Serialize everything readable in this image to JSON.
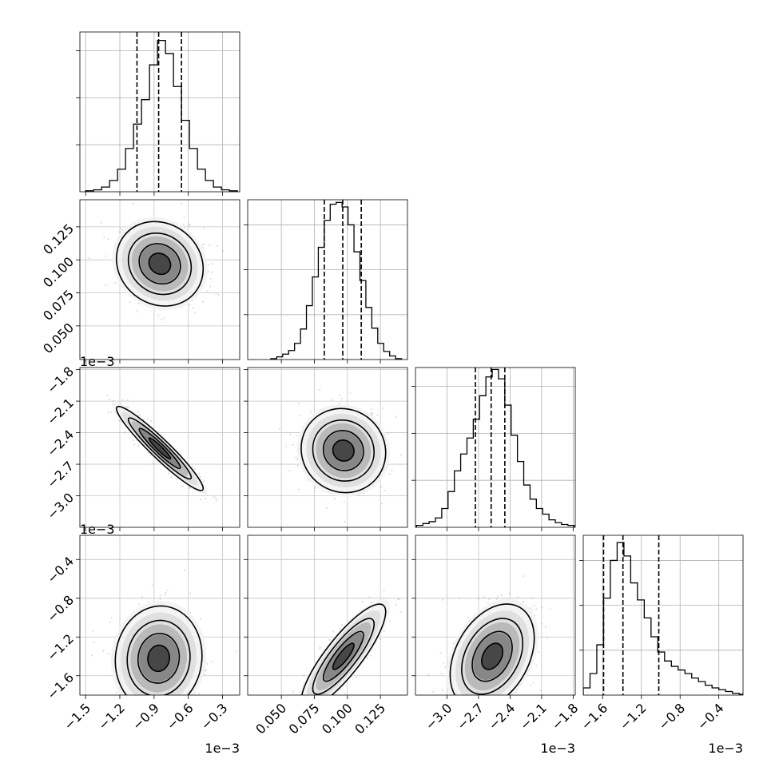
{
  "chart_data": {
    "type": "corner",
    "variables": 4,
    "grid": true,
    "sample_points": "grey scatter with shaded 2D density, black contours",
    "histograms": [
      {
        "variable": 0,
        "xlim": [
          -1.55,
          -0.15
        ],
        "quantiles": [
          -1.05,
          -0.86,
          -0.66
        ],
        "bins": [
          -1.5,
          -1.43,
          -1.36,
          -1.29,
          -1.22,
          -1.15,
          -1.08,
          -1.01,
          -0.94,
          -0.87,
          -0.8,
          -0.73,
          -0.66,
          -0.59,
          -0.52,
          -0.45,
          -0.38,
          -0.31,
          -0.24
        ],
        "counts": [
          1,
          2,
          5,
          12,
          24,
          46,
          72,
          98,
          135,
          161,
          147,
          112,
          76,
          46,
          24,
          12,
          5,
          2,
          1
        ],
        "yticks": [
          50,
          100,
          150
        ],
        "ymax": 170
      },
      {
        "variable": 1,
        "xlim": [
          0.0245,
          0.1455
        ],
        "quantiles": [
          0.0825,
          0.0965,
          0.1105
        ],
        "bins": [
          0.042,
          0.0465,
          0.051,
          0.0555,
          0.06,
          0.0645,
          0.069,
          0.0735,
          0.078,
          0.0825,
          0.087,
          0.0915,
          0.096,
          0.1005,
          0.105,
          0.1095,
          0.114,
          0.1185,
          0.123,
          0.1275,
          0.132,
          0.1365
        ],
        "counts": [
          1,
          3,
          6,
          10,
          18,
          34,
          60,
          92,
          125,
          155,
          173,
          175,
          170,
          150,
          120,
          88,
          58,
          35,
          18,
          9,
          4,
          1
        ],
        "yticks": [
          50,
          100,
          150
        ],
        "ymax": 178
      },
      {
        "variable": 2,
        "xlim": [
          -3.3,
          -1.78
        ],
        "quantiles": [
          -2.73,
          -2.58,
          -2.45
        ],
        "bins": [
          -3.29,
          -3.23,
          -3.17,
          -3.11,
          -3.05,
          -2.99,
          -2.93,
          -2.87,
          -2.81,
          -2.75,
          -2.69,
          -2.63,
          -2.57,
          -2.51,
          -2.45,
          -2.39,
          -2.33,
          -2.27,
          -2.21,
          -2.15,
          -2.09,
          -2.03,
          -1.97,
          -1.91,
          -1.85
        ],
        "counts": [
          2,
          4,
          6,
          10,
          20,
          38,
          60,
          78,
          95,
          115,
          140,
          160,
          168,
          158,
          130,
          98,
          70,
          45,
          30,
          20,
          14,
          8,
          5,
          3,
          2
        ],
        "yticks": [
          50,
          100,
          150
        ],
        "ymax": 170
      },
      {
        "variable": 3,
        "xlim": [
          -1.8,
          -0.15
        ],
        "quantiles": [
          -1.59,
          -1.39,
          -1.02
        ],
        "bins": [
          -1.8,
          -1.73,
          -1.66,
          -1.59,
          -1.52,
          -1.45,
          -1.38,
          -1.31,
          -1.24,
          -1.17,
          -1.1,
          -1.03,
          -0.96,
          -0.89,
          -0.82,
          -0.75,
          -0.68,
          -0.61,
          -0.54,
          -0.47,
          -0.4,
          -0.33,
          -0.26,
          -0.19
        ],
        "counts": [
          8,
          24,
          56,
          108,
          150,
          170,
          155,
          125,
          106,
          86,
          65,
          48,
          38,
          32,
          28,
          24,
          19,
          15,
          11,
          8,
          6,
          4,
          2,
          1
        ],
        "yticks": [
          50,
          100,
          150
        ],
        "ymax": 178
      }
    ],
    "pairs": [
      {
        "x": 0,
        "y": 1,
        "center": [
          -0.85,
          0.097
        ],
        "sigma": [
          0.19,
          0.016
        ],
        "rho": -0.12
      },
      {
        "x": 0,
        "y": 2,
        "center": [
          -0.85,
          -2.55
        ],
        "sigma": [
          0.19,
          0.2
        ],
        "rho": -0.95
      },
      {
        "x": 1,
        "y": 2,
        "center": [
          0.097,
          -2.57
        ],
        "sigma": [
          0.016,
          0.2
        ],
        "rho": -0.05
      },
      {
        "x": 0,
        "y": 3,
        "center": [
          -0.86,
          -1.42
        ],
        "sigma": [
          0.19,
          0.27
        ],
        "rho": 0.05
      },
      {
        "x": 1,
        "y": 3,
        "center": [
          0.097,
          -1.4
        ],
        "sigma": [
          0.016,
          0.27
        ],
        "rho": 0.85
      },
      {
        "x": 2,
        "y": 3,
        "center": [
          -2.57,
          -1.4
        ],
        "sigma": [
          0.2,
          0.27
        ],
        "rho": 0.35
      }
    ],
    "axes": [
      {
        "lim": [
          -1.55,
          -0.15
        ],
        "ticks": [
          -1.5,
          -1.2,
          -0.9,
          -0.6,
          -0.3
        ],
        "tick_labels": [
          "−1.5",
          "−1.2",
          "−0.9",
          "−0.6",
          "−0.3"
        ],
        "offset": "1e−3"
      },
      {
        "lim": [
          0.0245,
          0.1455
        ],
        "ticks": [
          0.05,
          0.075,
          0.1,
          0.125
        ],
        "tick_labels": [
          "0.050",
          "0.075",
          "0.100",
          "0.125"
        ],
        "offset": ""
      },
      {
        "lim": [
          -3.3,
          -1.78
        ],
        "ticks": [
          -3.0,
          -2.7,
          -2.4,
          -2.1,
          -1.8
        ],
        "tick_labels": [
          "−3.0",
          "−2.7",
          "−2.4",
          "−2.1",
          "−1.8"
        ],
        "offset": "1e−3"
      },
      {
        "lim": [
          -1.8,
          -0.15
        ],
        "ticks": [
          -1.6,
          -1.2,
          -0.8,
          -0.4
        ],
        "tick_labels": [
          "−1.6",
          "−1.2",
          "−0.8",
          "−0.4"
        ],
        "offset": "1e−3"
      }
    ]
  }
}
